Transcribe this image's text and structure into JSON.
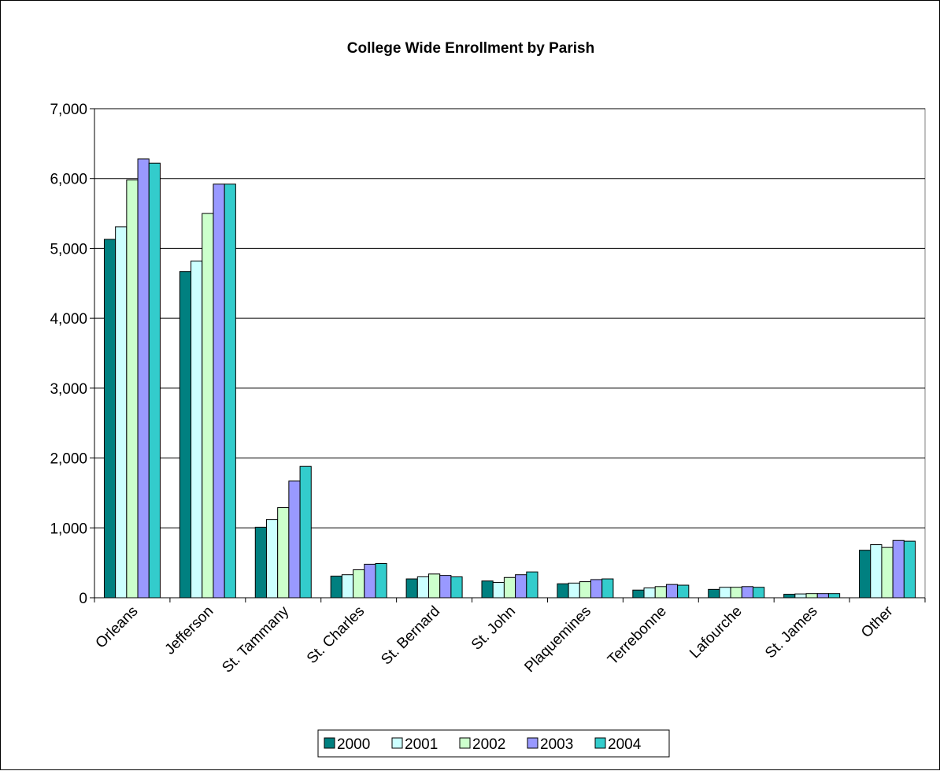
{
  "chart_data": {
    "type": "bar",
    "title": "College Wide Enrollment by Parish",
    "xlabel": "",
    "ylabel": "",
    "ylim": [
      0,
      7000
    ],
    "yticks": [
      0,
      1000,
      2000,
      3000,
      4000,
      5000,
      6000,
      7000
    ],
    "ytick_labels": [
      "0",
      "1,000",
      "2,000",
      "3,000",
      "4,000",
      "5,000",
      "6,000",
      "7,000"
    ],
    "grid": true,
    "legend_position": "bottom",
    "categories": [
      "Orleans",
      "Jefferson",
      "St. Tammany",
      "St. Charles",
      "St. Bernard",
      "St. John",
      "Plaquemines",
      "Terrebonne",
      "Lafourche",
      "St. James",
      "Other"
    ],
    "series": [
      {
        "name": "2000",
        "color": "#008080",
        "values": [
          5130,
          4670,
          1010,
          310,
          270,
          240,
          200,
          110,
          120,
          50,
          680
        ]
      },
      {
        "name": "2001",
        "color": "#CCFFFF",
        "values": [
          5310,
          4820,
          1120,
          330,
          300,
          220,
          210,
          140,
          150,
          55,
          760
        ]
      },
      {
        "name": "2002",
        "color": "#CCFFCC",
        "values": [
          5980,
          5500,
          1290,
          400,
          340,
          290,
          230,
          160,
          150,
          60,
          720
        ]
      },
      {
        "name": "2003",
        "color": "#9999FF",
        "values": [
          6280,
          5920,
          1670,
          480,
          320,
          330,
          260,
          190,
          160,
          60,
          820
        ]
      },
      {
        "name": "2004",
        "color": "#33CCCC",
        "values": [
          6220,
          5920,
          1880,
          490,
          300,
          370,
          270,
          180,
          150,
          60,
          810
        ]
      }
    ]
  }
}
